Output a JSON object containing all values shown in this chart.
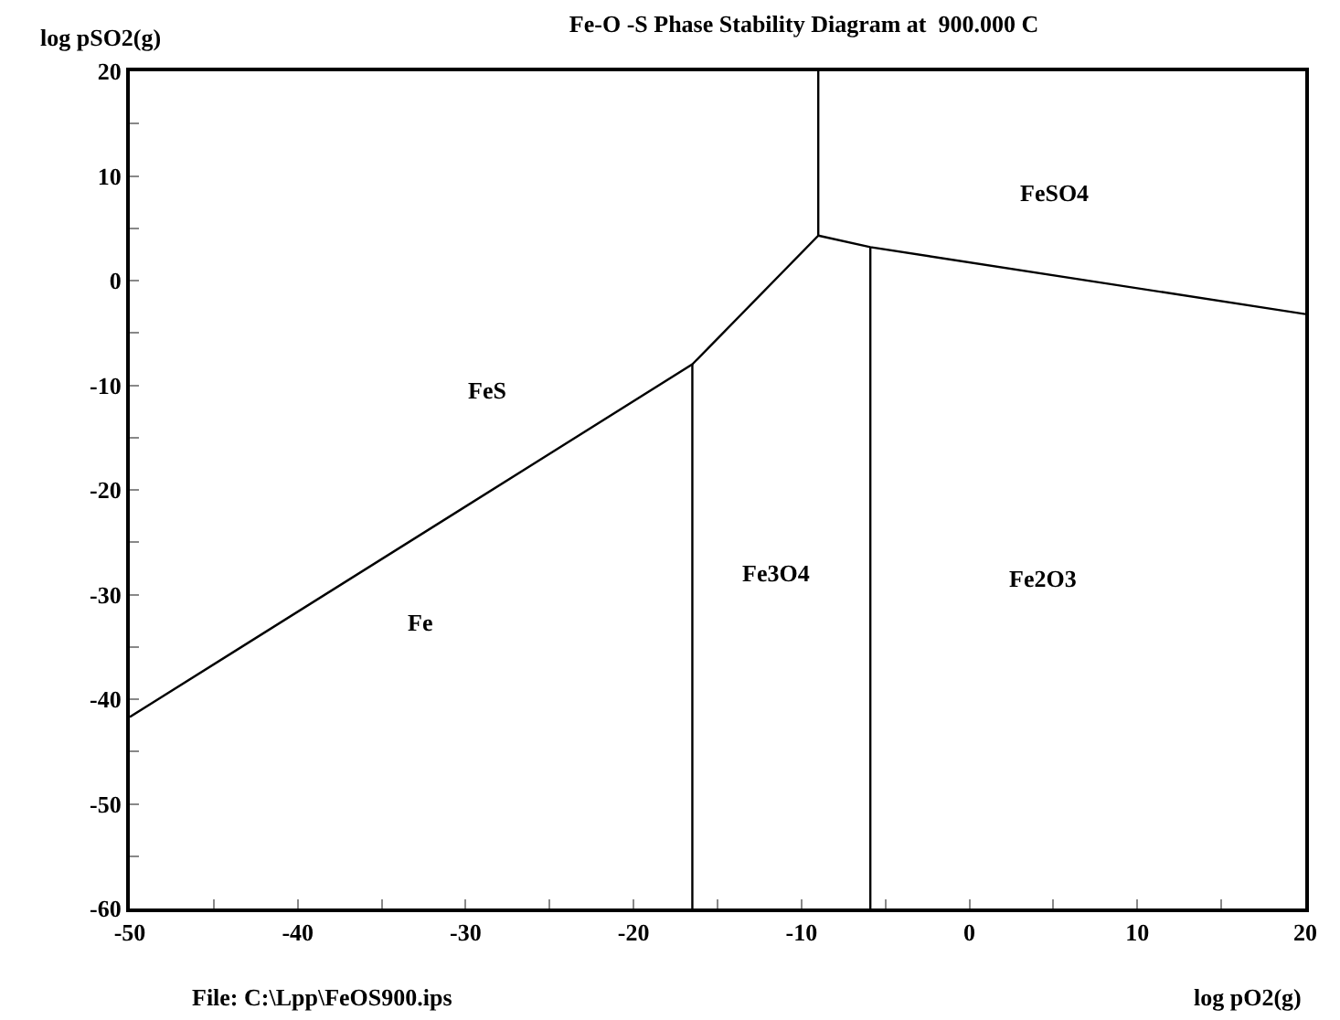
{
  "chart_data": {
    "type": "line",
    "title": "Fe-O -S Phase Stability Diagram at  900.000 C",
    "xlabel": "log pO2(g)",
    "ylabel": "log pSO2(g)",
    "series": [
      {
        "color": "#000000",
        "x": [
          -50,
          -16.5,
          -9.0,
          -9.0
        ],
        "values": [
          -41.7,
          -8.0,
          4.3,
          20
        ]
      },
      {
        "color": "#000000",
        "x": [
          -9.0,
          -5.9,
          20
        ],
        "values": [
          4.3,
          3.2,
          -3.2
        ]
      },
      {
        "color": "#000000",
        "x": [
          -16.5,
          -16.5
        ],
        "values": [
          -8.0,
          -60
        ]
      },
      {
        "color": "#000000",
        "x": [
          -5.9,
          -5.9
        ],
        "values": [
          3.2,
          -60
        ]
      }
    ],
    "annotations": [
      "FeSO4",
      "FeS",
      "Fe3O4",
      "Fe2O3",
      "Fe",
      "File: C:\\Lpp\\FeOS900.ips"
    ],
    "xlim": [
      -50,
      20
    ],
    "ylim": [
      -60,
      20
    ],
    "xticks": [
      -50,
      {
        "value": -45,
        "label": null
      },
      -40,
      {
        "value": -35,
        "label": null
      },
      -30,
      {
        "value": -25,
        "label": null
      },
      -20,
      {
        "value": -15,
        "label": null
      },
      -10,
      {
        "value": -5,
        "label": null
      },
      0,
      {
        "value": 5,
        "label": null
      },
      10,
      {
        "value": 15,
        "label": null
      },
      20
    ],
    "yticks": [
      -60,
      {
        "value": -55,
        "label": null
      },
      -50,
      {
        "value": -45,
        "label": null
      },
      -40,
      {
        "value": -35,
        "label": null
      },
      -30,
      {
        "value": -25,
        "label": null
      },
      -20,
      {
        "value": -15,
        "label": null
      },
      -10,
      {
        "value": -5,
        "label": null
      },
      0,
      {
        "value": 5,
        "label": null
      },
      10,
      {
        "value": 15,
        "label": null
      },
      20
    ],
    "marker": "none",
    "line_style": "solid"
  }
}
